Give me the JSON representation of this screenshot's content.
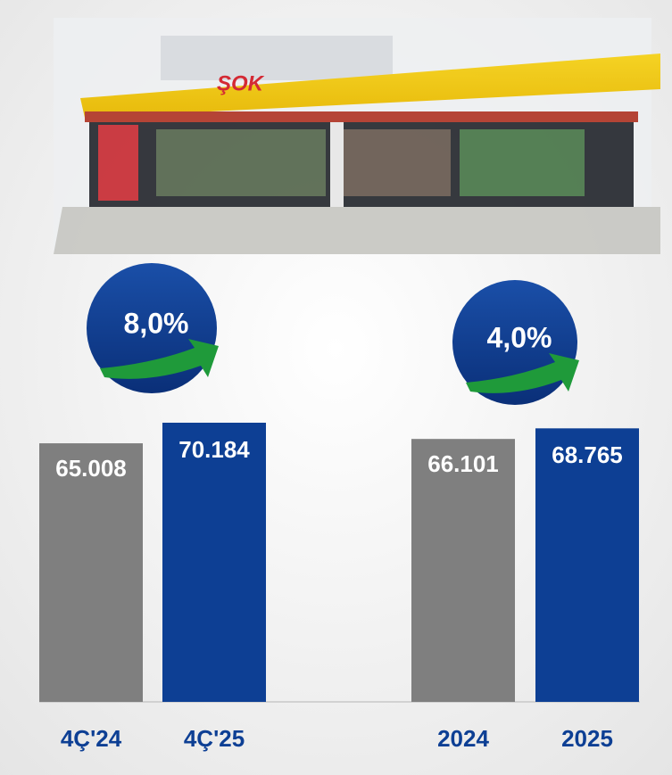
{
  "chart_data": {
    "type": "bar",
    "categories": [
      "4Ç'24",
      "4Ç'25",
      "2024",
      "2025"
    ],
    "values": [
      65008,
      70184,
      66101,
      68765
    ],
    "value_labels": [
      "65.008",
      "70.184",
      "66.101",
      "68.765"
    ],
    "colors": [
      "#7f7f7f",
      "#0d3f94",
      "#7f7f7f",
      "#0d3f94"
    ],
    "ylim": [
      0,
      100000
    ],
    "annotations": [
      "8,0%",
      "4,0%"
    ]
  }
}
